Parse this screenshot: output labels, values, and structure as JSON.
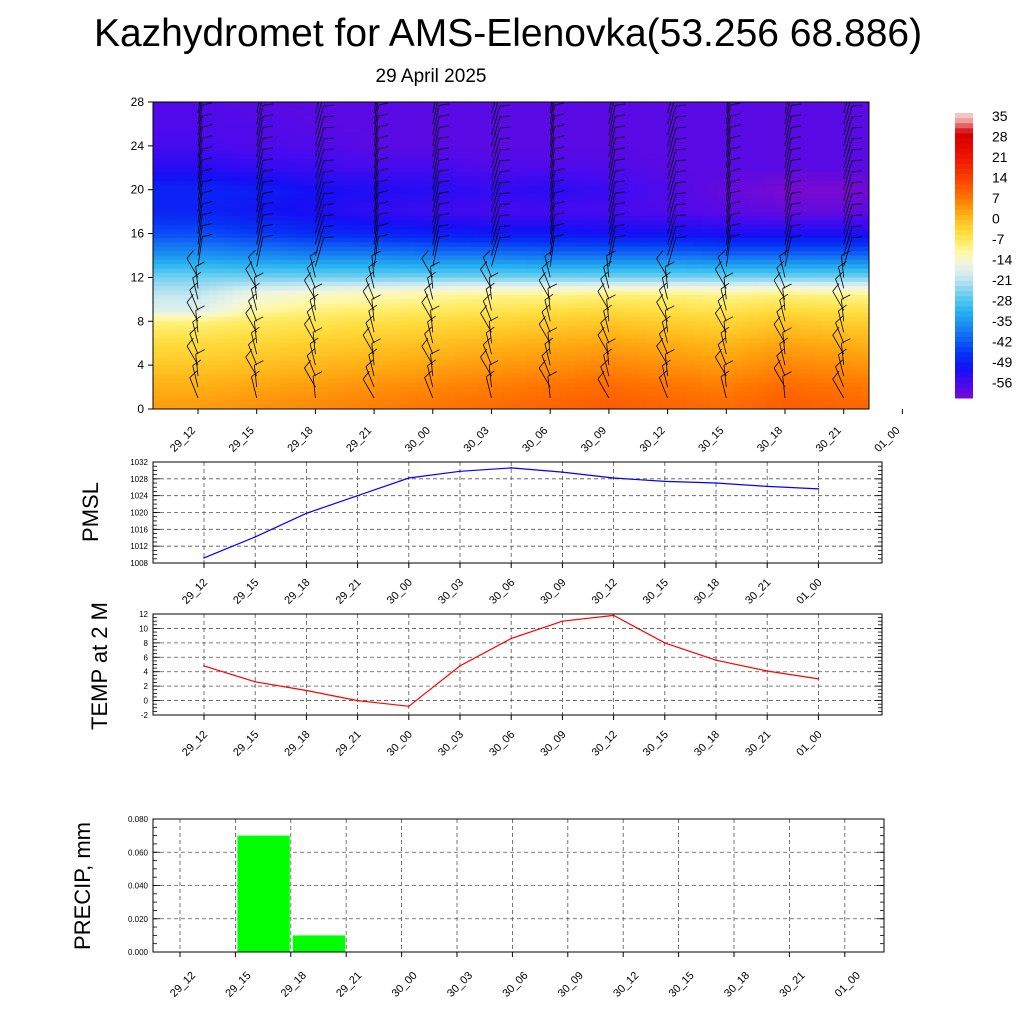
{
  "header": {
    "title": "Kazhydromet for AMS-Elenovka(53.256 68.886)",
    "date": "29 April 2025"
  },
  "time_labels": [
    "29_12",
    "29_15",
    "29_18",
    "29_21",
    "30_00",
    "30_03",
    "30_06",
    "30_09",
    "30_12",
    "30_15",
    "30_18",
    "30_21",
    "01_00"
  ],
  "colors": {
    "pmsl_line": "#0000ff",
    "temp_line": "#ff0000",
    "precip_bar": "#00ff00",
    "grid": "#555555"
  },
  "chart_data": [
    {
      "type": "heatmap",
      "title": "",
      "xlabel": "",
      "ylabel": "",
      "categories": [
        "29_12",
        "29_15",
        "29_18",
        "29_21",
        "30_00",
        "30_03",
        "30_06",
        "30_09",
        "30_12",
        "30_15",
        "30_18",
        "30_21",
        "01_00"
      ],
      "y_ticks": [
        0,
        4,
        8,
        12,
        16,
        20,
        24,
        28
      ],
      "ylim": [
        0,
        28
      ],
      "colorbar_labels": [
        "35",
        "28",
        "21",
        "14",
        "7",
        "0",
        "-7",
        "-14",
        "-21",
        "-28",
        "-35",
        "-42",
        "-49",
        "-56"
      ],
      "colorbar_range": [
        -60,
        38
      ],
      "profile_levels": [
        0,
        2,
        4,
        6,
        8,
        9,
        10.5,
        12,
        14,
        16,
        18,
        20,
        22,
        24,
        26,
        28
      ],
      "values": [
        [
          5,
          6,
          7,
          8,
          9,
          10,
          11,
          12,
          11,
          10,
          12,
          11,
          10
        ],
        [
          3,
          4,
          5,
          6,
          7,
          8,
          9,
          10,
          9,
          8,
          10,
          9,
          8
        ],
        [
          0,
          1,
          2,
          3,
          4,
          5,
          6,
          7,
          6,
          5,
          7,
          6,
          5
        ],
        [
          -3,
          -2,
          -1,
          0,
          1,
          2,
          3,
          4,
          3,
          2,
          4,
          3,
          2
        ],
        [
          -8,
          -6,
          -5,
          -4,
          -3,
          -2,
          -1,
          0,
          -1,
          -2,
          0,
          -1,
          -2
        ],
        [
          -16,
          -10,
          -8,
          -7,
          -6,
          -5,
          -4,
          -3,
          -4,
          -5,
          -3,
          -4,
          -5
        ],
        [
          -19,
          -14,
          -12,
          -11,
          -10,
          -9,
          -9,
          -8,
          -8,
          -9,
          -8,
          -9,
          -9
        ],
        [
          -24,
          -24,
          -24,
          -24,
          -24,
          -24,
          -24,
          -24,
          -24,
          -24,
          -24,
          -24,
          -24
        ],
        [
          -34,
          -35,
          -36,
          -36,
          -37,
          -37,
          -38,
          -38,
          -38,
          -39,
          -39,
          -39,
          -39
        ],
        [
          -42,
          -44,
          -46,
          -47,
          -48,
          -49,
          -49,
          -50,
          -50,
          -51,
          -51,
          -51,
          -51
        ],
        [
          -47,
          -49,
          -51,
          -53,
          -54,
          -55,
          -55,
          -55,
          -56,
          -57,
          -58,
          -58,
          -57
        ],
        [
          -47,
          -48,
          -50,
          -51,
          -52,
          -53,
          -52,
          -54,
          -56,
          -58,
          -60,
          -60,
          -58
        ],
        [
          -52,
          -53,
          -54,
          -55,
          -55,
          -56,
          -56,
          -56,
          -57,
          -57,
          -57,
          -57,
          -57
        ],
        [
          -55,
          -56,
          -56,
          -57,
          -57,
          -57,
          -57,
          -57,
          -57,
          -57,
          -57,
          -57,
          -57
        ],
        [
          -56,
          -56,
          -57,
          -57,
          -57,
          -57,
          -57,
          -57,
          -57,
          -57,
          -57,
          -57,
          -57
        ],
        [
          -56,
          -57,
          -57,
          -57,
          -57,
          -57,
          -57,
          -57,
          -57,
          -57,
          -57,
          -57,
          -57
        ]
      ]
    },
    {
      "type": "line",
      "title": "",
      "xlabel": "",
      "ylabel": "PMSL",
      "categories": [
        "29_12",
        "29_15",
        "29_18",
        "29_21",
        "30_00",
        "30_03",
        "30_06",
        "30_09",
        "30_12",
        "30_15",
        "30_18",
        "30_21",
        "01_00"
      ],
      "series": [
        {
          "values": [
            1009.2,
            1014.2,
            1019.8,
            1024.0,
            1028.2,
            1029.8,
            1030.6,
            1029.6,
            1028.2,
            1027.4,
            1027.0,
            1026.2,
            1025.6
          ]
        }
      ],
      "ylim": [
        1008,
        1032
      ],
      "y_ticks": [
        "1008",
        "1012",
        "1016",
        "1020",
        "1024",
        "1028",
        "1032"
      ]
    },
    {
      "type": "line",
      "title": "",
      "xlabel": "",
      "ylabel": "TEMP at 2 M",
      "categories": [
        "29_12",
        "29_15",
        "29_18",
        "29_21",
        "30_00",
        "30_03",
        "30_06",
        "30_09",
        "30_12",
        "30_15",
        "30_18",
        "30_21",
        "01_00"
      ],
      "series": [
        {
          "values": [
            4.8,
            2.6,
            1.4,
            0.0,
            -0.8,
            4.8,
            8.6,
            11.0,
            11.8,
            8.0,
            5.6,
            4.1,
            3.0
          ]
        }
      ],
      "ylim": [
        -2,
        12
      ],
      "y_ticks": [
        "-2",
        "0",
        "2",
        "4",
        "6",
        "8",
        "10",
        "12"
      ]
    },
    {
      "type": "bar",
      "title": "",
      "xlabel": "",
      "ylabel": "PRECIP, mm",
      "categories": [
        "29_12",
        "29_15",
        "29_18",
        "29_21",
        "30_00",
        "30_03",
        "30_06",
        "30_09",
        "30_12",
        "30_15",
        "30_18",
        "30_21",
        "01_00"
      ],
      "values": [
        0,
        0.07,
        0.01,
        0,
        0,
        0,
        0,
        0,
        0,
        0,
        0,
        0,
        0
      ],
      "ylim": [
        0,
        0.08
      ],
      "y_ticks": [
        "0.000",
        "0.020",
        "0.040",
        "0.060",
        "0.080"
      ]
    }
  ]
}
